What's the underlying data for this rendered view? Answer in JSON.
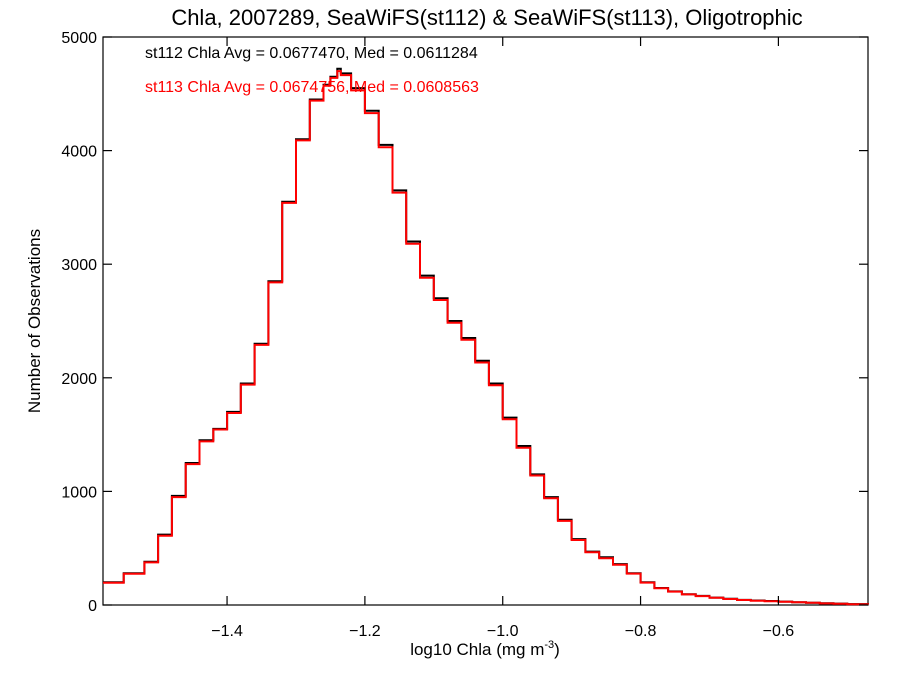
{
  "chart_data": {
    "type": "line",
    "style": "step-histogram",
    "title": "Chla, 2007289, SeaWiFS(st112) & SeaWiFS(st113), Oligotrophic",
    "xlabel": "log10 Chla (mg m",
    "xlabel_superscript": "-3",
    "xlabel_suffix": ")",
    "ylabel": "Number of Observations",
    "xlim": [
      -1.58,
      -0.47
    ],
    "ylim": [
      0,
      5000
    ],
    "xticks": [
      -1.4,
      -1.2,
      -1.0,
      -0.8,
      -0.6
    ],
    "xtick_labels": [
      "−1.4",
      "−1.2",
      "−1.0",
      "−0.8",
      "−0.6"
    ],
    "yticks": [
      0,
      1000,
      2000,
      3000,
      4000,
      5000
    ],
    "ytick_labels": [
      "0",
      "1000",
      "2000",
      "3000",
      "4000",
      "5000"
    ],
    "grid": false,
    "annotations": [
      {
        "text": "st112 Chla Avg = 0.0677470, Med = 0.0611284",
        "color": "#000000"
      },
      {
        "text": "st113 Chla Avg = 0.0674756, Med = 0.0608563",
        "color": "#ff0000"
      }
    ],
    "x": [
      -1.58,
      -1.55,
      -1.52,
      -1.5,
      -1.48,
      -1.46,
      -1.44,
      -1.42,
      -1.4,
      -1.38,
      -1.36,
      -1.34,
      -1.32,
      -1.3,
      -1.28,
      -1.26,
      -1.25,
      -1.24,
      -1.235,
      -1.22,
      -1.2,
      -1.18,
      -1.16,
      -1.14,
      -1.12,
      -1.1,
      -1.08,
      -1.06,
      -1.04,
      -1.02,
      -1.0,
      -0.98,
      -0.96,
      -0.94,
      -0.92,
      -0.9,
      -0.88,
      -0.86,
      -0.84,
      -0.82,
      -0.8,
      -0.78,
      -0.76,
      -0.74,
      -0.72,
      -0.7,
      -0.68,
      -0.66,
      -0.64,
      -0.62,
      -0.6,
      -0.58,
      -0.56,
      -0.54,
      -0.52,
      -0.5,
      -0.47
    ],
    "series": [
      {
        "name": "st112",
        "color": "#000000",
        "values": [
          200,
          280,
          380,
          620,
          960,
          1250,
          1450,
          1550,
          1700,
          1950,
          2300,
          2850,
          3550,
          4100,
          4450,
          4580,
          4650,
          4720,
          4680,
          4550,
          4350,
          4050,
          3650,
          3200,
          2900,
          2700,
          2500,
          2350,
          2150,
          1950,
          1650,
          1400,
          1150,
          950,
          750,
          580,
          470,
          420,
          360,
          280,
          200,
          150,
          120,
          95,
          80,
          65,
          55,
          45,
          40,
          35,
          30,
          25,
          20,
          15,
          12,
          8,
          5
        ]
      },
      {
        "name": "st113",
        "color": "#ff0000",
        "values": [
          195,
          275,
          375,
          610,
          950,
          1240,
          1440,
          1545,
          1690,
          1940,
          2290,
          2840,
          3540,
          4090,
          4440,
          4570,
          4640,
          4700,
          4665,
          4530,
          4330,
          4030,
          3630,
          3180,
          2880,
          2685,
          2485,
          2335,
          2135,
          1935,
          1635,
          1385,
          1140,
          940,
          740,
          572,
          465,
          412,
          355,
          276,
          197,
          148,
          118,
          93,
          78,
          63,
          53,
          44,
          38,
          33,
          29,
          24,
          19,
          14,
          11,
          7,
          4
        ]
      }
    ]
  }
}
